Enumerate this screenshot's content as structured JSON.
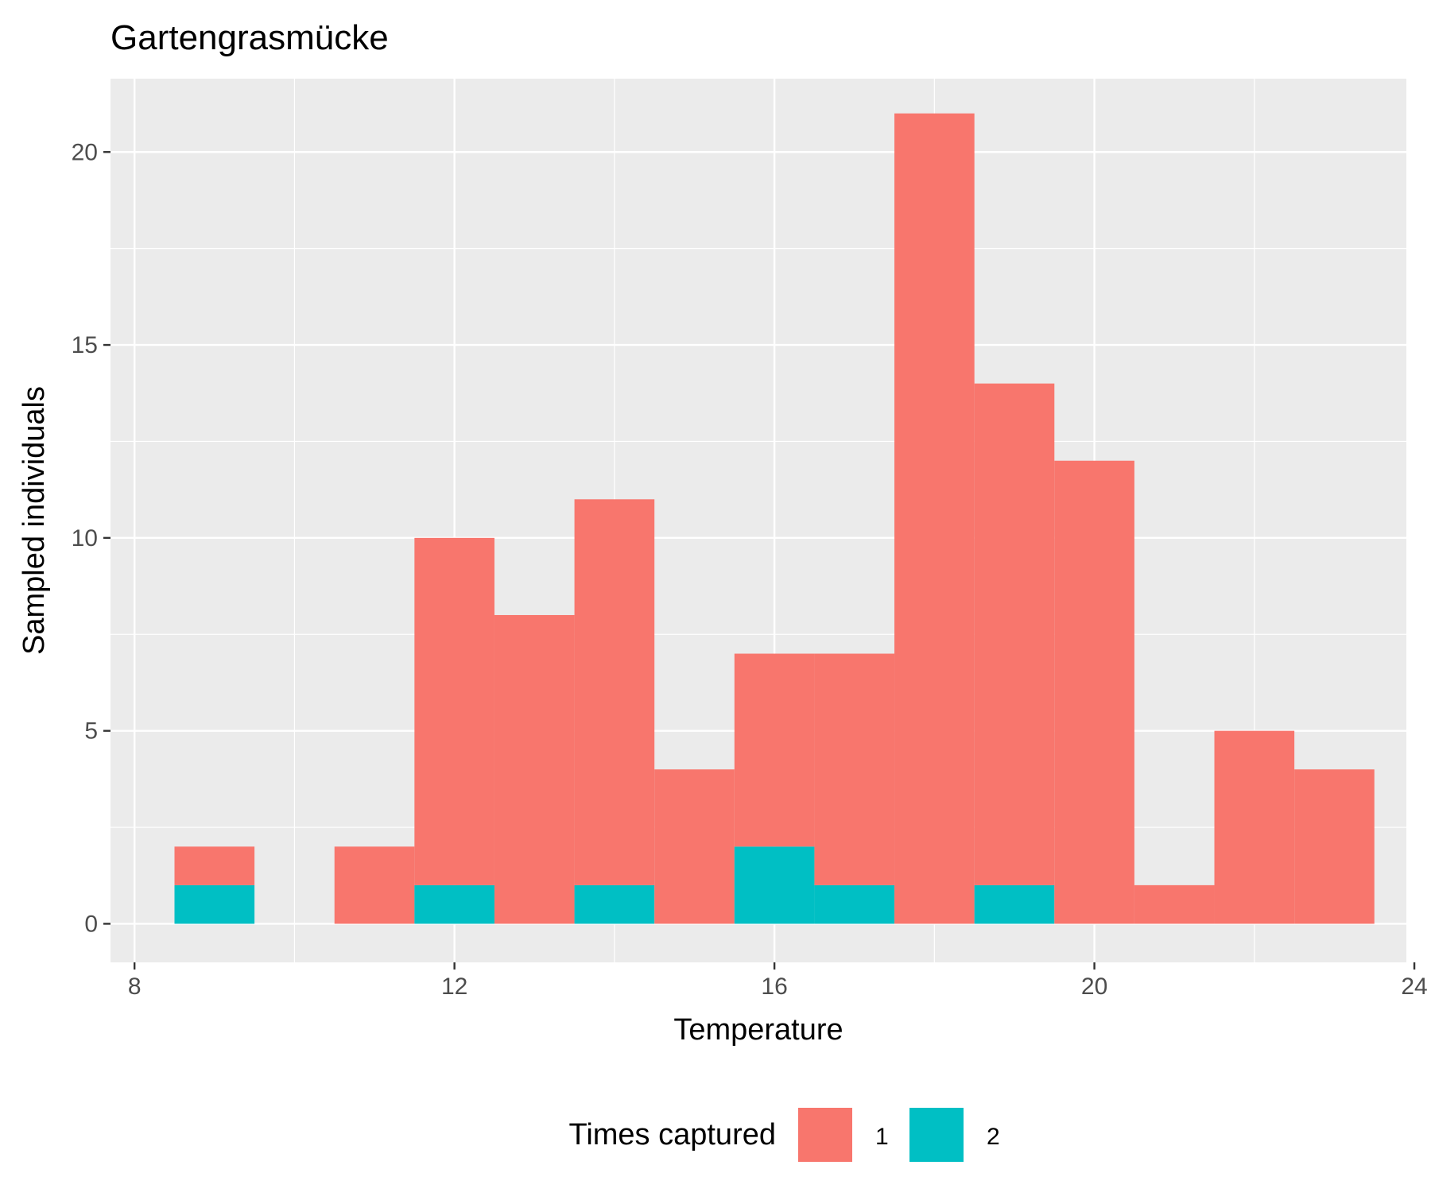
{
  "chart_data": {
    "type": "bar",
    "stacked": true,
    "histogram": true,
    "title": "Gartengrasmücke",
    "xlabel": "Temperature",
    "ylabel": "Sampled individuals",
    "xlim": [
      7.7,
      23.9
    ],
    "ylim": [
      -1,
      21.9
    ],
    "x_ticks": [
      8,
      12,
      16,
      20,
      24
    ],
    "y_ticks": [
      0,
      5,
      10,
      15,
      20
    ],
    "grid": true,
    "bin_width": 1,
    "bin_centers": [
      9,
      10,
      11,
      12,
      13,
      14,
      15,
      16,
      17,
      18,
      19,
      20,
      21,
      22,
      23
    ],
    "series": [
      {
        "name": "1",
        "color": "#F8766D",
        "values": [
          1,
          0,
          2,
          9,
          8,
          10,
          4,
          5,
          6,
          21,
          13,
          12,
          1,
          5,
          4
        ]
      },
      {
        "name": "2",
        "color": "#00BFC4",
        "values": [
          1,
          0,
          0,
          1,
          0,
          1,
          0,
          2,
          1,
          0,
          1,
          0,
          0,
          0,
          0
        ]
      }
    ],
    "legend": {
      "title": "Times captured",
      "position": "bottom"
    }
  }
}
